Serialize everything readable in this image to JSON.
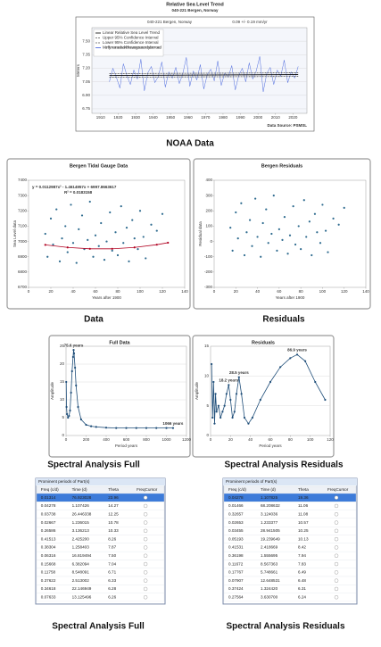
{
  "chart_data": [
    {
      "type": "line",
      "title": "Relative Sea Level Trend",
      "subtitle": "040-221 Bergen, Norway",
      "plot_label": "040-221 Bergen, Norway",
      "trend": "0.09 +/- 0.19 mm/yr",
      "y_label": "Meters",
      "source": "Data Source: PSMSL",
      "grid": true,
      "xlim": [
        1905,
        2028
      ],
      "xticks": [
        1910,
        1920,
        1930,
        1940,
        1950,
        1960,
        1970,
        1980,
        1990,
        2000,
        2010,
        2020
      ],
      "ylim": [
        6.7,
        7.65
      ],
      "yticks": [
        {
          "value": 6.75,
          "label": "6.75"
        },
        {
          "value": 6.9,
          "label": "6.90"
        },
        {
          "value": 7.05,
          "label": "7.05"
        },
        {
          "value": 7.2,
          "label": "7.20"
        },
        {
          "value": 7.35,
          "label": "7.35"
        },
        {
          "value": 7.5,
          "label": "7.50"
        }
      ],
      "series": [
        {
          "name": "Linear Relative Sea Level Trend",
          "color": "#000000",
          "x": [
            1915,
            2023
          ],
          "values": [
            7.12,
            7.13
          ]
        },
        {
          "name": "Upper 95% Confidence Interval",
          "color": "#555555",
          "dash": true,
          "x": [
            1915,
            2023
          ],
          "values": [
            7.14,
            7.15
          ]
        },
        {
          "name": "Lower 95% Confidence Interval",
          "color": "#555555",
          "dash": true,
          "x": [
            1915,
            2023
          ],
          "values": [
            7.1,
            7.11
          ]
        },
        {
          "name": "Monthly mean sea level with the average seasonal cycle removed",
          "color": "#3b5bdb",
          "thin": true,
          "x": [
            1915,
            1917,
            1919,
            1921,
            1923,
            1925,
            1927,
            1929,
            1931,
            1933,
            1935,
            1937,
            1939,
            1941,
            1943,
            1945,
            1947,
            1949,
            1951,
            1953,
            1955,
            1957,
            1959,
            1961,
            1963,
            1965,
            1967,
            1969,
            1971,
            1973,
            1975,
            1977,
            1979,
            1981,
            1983,
            1985,
            1987,
            1989,
            1991,
            1993,
            1995,
            1997,
            1999,
            2001,
            2003,
            2005,
            2007,
            2009,
            2011,
            2013,
            2015,
            2017,
            2019,
            2021,
            2023
          ],
          "values": [
            7.05,
            7.2,
            7.1,
            6.98,
            7.25,
            7.12,
            7.02,
            7.18,
            7.08,
            7.3,
            6.95,
            7.15,
            7.22,
            7.04,
            7.11,
            7.27,
            6.99,
            7.16,
            7.09,
            7.21,
            7.03,
            7.14,
            7.32,
            7.0,
            7.17,
            7.07,
            7.24,
            6.97,
            7.13,
            7.19,
            7.06,
            7.28,
            7.01,
            7.15,
            7.1,
            7.23,
            6.96,
            7.12,
            7.2,
            7.05,
            7.26,
            7.08,
            7.17,
            7.33,
            6.94,
            7.14,
            7.21,
            7.02,
            7.18,
            7.11,
            7.29,
            7.04,
            7.16,
            7.09,
            7.22
          ]
        }
      ]
    },
    {
      "type": "scatter",
      "title": "Bergen Tidal Gauge Data",
      "equation": "y = 0.0112987x² - 1.4614957x + 6997.8663617",
      "r_squared": "R² = 0.0183158",
      "y_label": "Sea Level data",
      "x_label": "Years after 1900",
      "grid": false,
      "xlim": [
        0,
        140
      ],
      "xticks": [
        0,
        20,
        40,
        60,
        80,
        100,
        120,
        140
      ],
      "ylim": [
        6700,
        7400
      ],
      "yticks": [
        6700,
        6800,
        6900,
        7000,
        7100,
        7200,
        7300,
        7400
      ],
      "series": [
        {
          "type": "scatter",
          "color": "#2e6b8f",
          "x": [
            15,
            17,
            20,
            22,
            25,
            28,
            30,
            33,
            35,
            38,
            40,
            43,
            45,
            48,
            50,
            53,
            55,
            58,
            60,
            63,
            65,
            68,
            70,
            73,
            75,
            78,
            80,
            83,
            85,
            88,
            90,
            93,
            95,
            98,
            100,
            103,
            105,
            110,
            115,
            120
          ],
          "values": [
            7050,
            6900,
            7150,
            6980,
            7210,
            6870,
            7020,
            7100,
            6930,
            7240,
            6990,
            6860,
            7080,
            7170,
            6950,
            7010,
            7260,
            6900,
            7040,
            6970,
            7120,
            6880,
            7000,
            7190,
            6940,
            7060,
            6910,
            7230,
            6990,
            7090,
            6870,
            7140,
            7020,
            6950,
            7200,
            7030,
            6890,
            7110,
            7070,
            7180
          ]
        },
        {
          "type": "line",
          "color": "#b00020",
          "markers": true,
          "x": [
            15,
            35,
            55,
            75,
            95,
            115,
            125
          ],
          "values": [
            6978,
            6961,
            6952,
            6952,
            6961,
            6979,
            6992
          ]
        }
      ]
    },
    {
      "type": "scatter",
      "title": "Bergen Residuals",
      "y_label": "Residual data",
      "x_label": "Years after 1900",
      "grid": false,
      "xlim": [
        0,
        140
      ],
      "xticks": [
        0,
        20,
        40,
        60,
        80,
        100,
        120,
        140
      ],
      "ylim": [
        -300,
        400
      ],
      "yticks": [
        -300,
        -200,
        -100,
        0,
        100,
        200,
        300,
        400
      ],
      "series": [
        {
          "type": "scatter",
          "color": "#2e6b8f",
          "x": [
            15,
            17,
            20,
            22,
            25,
            28,
            30,
            33,
            35,
            38,
            40,
            43,
            45,
            48,
            50,
            53,
            55,
            58,
            60,
            63,
            65,
            68,
            70,
            73,
            75,
            78,
            80,
            83,
            85,
            88,
            90,
            93,
            95,
            98,
            100,
            103,
            105,
            110,
            115,
            120
          ],
          "values": [
            90,
            -60,
            190,
            20,
            250,
            -90,
            60,
            140,
            -30,
            280,
            30,
            -100,
            120,
            210,
            -10,
            50,
            300,
            -60,
            80,
            10,
            160,
            -80,
            40,
            230,
            -20,
            100,
            -50,
            270,
            30,
            130,
            -90,
            180,
            60,
            -10,
            240,
            70,
            -70,
            150,
            110,
            220
          ]
        }
      ]
    },
    {
      "type": "line",
      "title": "Full Data",
      "y_label": "Amplitude",
      "x_label": "Period years",
      "grid": true,
      "xlim": [
        0,
        1200
      ],
      "xticks": [
        0,
        200,
        400,
        600,
        800,
        1000,
        1200
      ],
      "ylim": [
        0,
        25
      ],
      "yticks": [
        0,
        5,
        10,
        15,
        20,
        25
      ],
      "series": [
        {
          "color": "#1f4e79",
          "markers": true,
          "x": [
            2,
            5,
            10,
            20,
            30,
            40,
            50,
            60,
            70,
            75.6,
            80,
            90,
            100,
            120,
            150,
            200,
            250,
            300,
            400,
            500,
            600,
            700,
            800,
            900,
            1000,
            1066
          ],
          "values": [
            15,
            8,
            6,
            5,
            5.5,
            7,
            12,
            18,
            22,
            23.96,
            23,
            19,
            14,
            8,
            4.5,
            3,
            2.6,
            2.4,
            2.2,
            2.1,
            2.1,
            2.1,
            2.1,
            2.1,
            2.1,
            2.1
          ]
        }
      ],
      "annotations": [
        {
          "text": "75.6 years",
          "x": 75.6,
          "y": 23.96
        },
        {
          "text": "1066 years",
          "x": 1066,
          "y": 2.1
        }
      ]
    },
    {
      "type": "line",
      "title": "Residuals",
      "y_label": "Amplitude",
      "x_label": "Period years",
      "grid": true,
      "xlim": [
        0,
        120
      ],
      "xticks": [
        0,
        20,
        40,
        60,
        80,
        100,
        120
      ],
      "ylim": [
        0,
        15
      ],
      "yticks": [
        0,
        5,
        10,
        15
      ],
      "series": [
        {
          "color": "#1f4e79",
          "markers": true,
          "x": [
            1,
            2,
            3,
            4,
            5,
            6,
            8,
            10,
            12,
            14,
            16,
            18.2,
            20,
            22,
            24,
            26,
            28.5,
            31,
            34,
            38,
            42,
            50,
            60,
            70,
            80,
            86.9,
            95,
            105,
            115
          ],
          "values": [
            12,
            3,
            9,
            2,
            7,
            4,
            5,
            3,
            4,
            5,
            7,
            8.5,
            6,
            3,
            4,
            7,
            9.8,
            7,
            3,
            2,
            3,
            6,
            9,
            11.5,
            13,
            13.6,
            12.5,
            9,
            6
          ]
        }
      ],
      "annotations": [
        {
          "text": "18.2 years",
          "x": 18.2,
          "y": 8.5
        },
        {
          "text": "28.5 years",
          "x": 28.5,
          "y": 9.8
        },
        {
          "text": "86.9 years",
          "x": 86.9,
          "y": 13.6
        }
      ]
    }
  ],
  "tables": [
    {
      "title": "Prominent periods of Part(s)",
      "columns": [
        "Freq (c/d)",
        "Time (d)",
        "Theta",
        "FreqCursor"
      ],
      "rows": [
        [
          "0.01314",
          "76.923028",
          "23.96"
        ],
        [
          "0.04278",
          "1.107426",
          "14.27"
        ],
        [
          "0.03738",
          "26.446338",
          "12.25"
        ],
        [
          "0.02667",
          "1.236015",
          "10.78"
        ],
        [
          "0.26586",
          "3.136213",
          "10.33"
        ],
        [
          "0.41513",
          "2.425200",
          "8.26"
        ],
        [
          "0.38304",
          "1.258403",
          "7.87"
        ],
        [
          "0.06316",
          "16.819494",
          "7.50"
        ],
        [
          "0.15668",
          "6.382094",
          "7.04"
        ],
        [
          "0.11758",
          "8.548091",
          "6.71"
        ],
        [
          "0.37622",
          "2.513002",
          "6.33"
        ],
        [
          "0.34618",
          "22.146949",
          "6.28"
        ],
        [
          "0.07633",
          "13.125496",
          "6.26"
        ]
      ]
    },
    {
      "title": "Prominent periods of Part(s)",
      "columns": [
        "Freq (c/d)",
        "Time (d)",
        "Theta",
        "FreqCursor"
      ],
      "rows": [
        [
          "0.04278",
          "1.107825",
          "19.36"
        ],
        [
          "0.01466",
          "68.208632",
          "11.06"
        ],
        [
          "0.32657",
          "3.124036",
          "11.08"
        ],
        [
          "0.02653",
          "1.233377",
          "10.57"
        ],
        [
          "0.03455",
          "28.941505",
          "10.25"
        ],
        [
          "0.05193",
          "19.239649",
          "10.13"
        ],
        [
          "0.41531",
          "2.418669",
          "8.42"
        ],
        [
          "0.36198",
          "1.555695",
          "7.94"
        ],
        [
          "0.11672",
          "8.567363",
          "7.83"
        ],
        [
          "0.17767",
          "5.748661",
          "6.49"
        ],
        [
          "0.07907",
          "12.648531",
          "6.48"
        ],
        [
          "0.37424",
          "1.324420",
          "6.31"
        ],
        [
          "0.27564",
          "3.630700",
          "6.24"
        ]
      ]
    }
  ],
  "captions": [
    "NOAA Data",
    "Data",
    "Residuals",
    "Spectral Analysis Full",
    "Spectral Analysis Residuals",
    "Spectral Analysis Full",
    "Spectral Analysis Residuals"
  ]
}
